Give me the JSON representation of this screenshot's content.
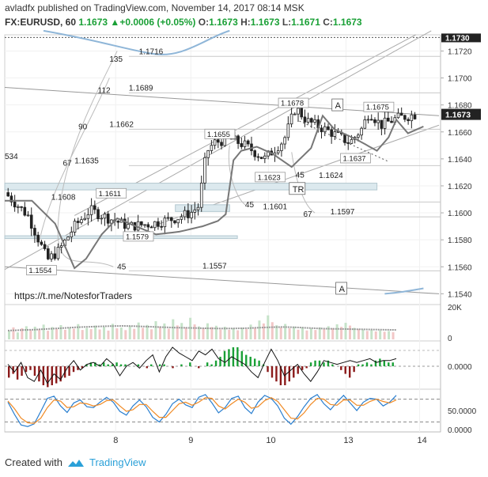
{
  "header": {
    "user": "avladfx",
    "published": "published on TradingView.com, November 14, 2017 08:14 MSK",
    "symbol": "FX:EURUSD, 60",
    "last": "1.1673",
    "change": "+0.0006 (+0.05%)",
    "o_label": "O:",
    "o": "1.1673",
    "h_label": "H:",
    "h": "1.1673",
    "l_label": "L:",
    "l": "1.1671",
    "c_label": "C:",
    "c": "1.1673"
  },
  "footer": {
    "created_with": "Created with",
    "brand": "TradingView"
  },
  "colors": {
    "bull": "#1aa036",
    "bear": "#8b1a1a",
    "price_label": "#222222",
    "stoch_k": "#2a7fd0",
    "stoch_d": "#f08a24",
    "ma_line": "#777777",
    "blue_band": "#8fb6d8"
  },
  "chart_data": [
    {
      "type": "line",
      "subtype": "candlestick",
      "yaxis_ticks": [
        "1.1720",
        "1.1700",
        "1.1680",
        "1.1660",
        "1.1640",
        "1.1620",
        "1.1600",
        "1.1580",
        "1.1560",
        "1.1540"
      ],
      "ylim": [
        1.1532,
        1.1732
      ],
      "xaxis_ticks": [
        "8",
        "9",
        "10",
        "13",
        "14"
      ],
      "price_labels": [
        "1.1730",
        "1.1673"
      ],
      "current_price": 1.1673,
      "top_line": 1.173,
      "price_points": [
        {
          "x": 0.0,
          "y": 1.1615
        },
        {
          "x": 0.3,
          "y": 1.1598
        },
        {
          "x": 0.55,
          "y": 1.1565
        },
        {
          "x": 0.7,
          "y": 1.1572
        },
        {
          "x": 0.9,
          "y": 1.159
        },
        {
          "x": 1.1,
          "y": 1.1602
        },
        {
          "x": 1.3,
          "y": 1.1597
        },
        {
          "x": 1.6,
          "y": 1.159
        },
        {
          "x": 1.9,
          "y": 1.1592
        },
        {
          "x": 2.2,
          "y": 1.1596
        },
        {
          "x": 2.4,
          "y": 1.16
        },
        {
          "x": 2.5,
          "y": 1.1605
        },
        {
          "x": 2.6,
          "y": 1.1645
        },
        {
          "x": 2.7,
          "y": 1.1652
        },
        {
          "x": 2.9,
          "y": 1.1655
        },
        {
          "x": 3.1,
          "y": 1.165
        },
        {
          "x": 3.35,
          "y": 1.164
        },
        {
          "x": 3.6,
          "y": 1.1654
        },
        {
          "x": 3.75,
          "y": 1.1678
        },
        {
          "x": 3.9,
          "y": 1.1668
        },
        {
          "x": 4.2,
          "y": 1.166
        },
        {
          "x": 4.45,
          "y": 1.1652
        },
        {
          "x": 4.6,
          "y": 1.1662
        },
        {
          "x": 4.7,
          "y": 1.1675
        },
        {
          "x": 4.85,
          "y": 1.1665
        },
        {
          "x": 5.05,
          "y": 1.167
        },
        {
          "x": 5.3,
          "y": 1.1673
        }
      ],
      "level_labels": [
        {
          "text": "1.1716",
          "price": 1.1716,
          "x": 1.73
        },
        {
          "text": "1.1689",
          "price": 1.1689,
          "x": 1.6
        },
        {
          "text": "1.1662",
          "price": 1.1662,
          "x": 1.35
        },
        {
          "text": "1.1635",
          "price": 1.1635,
          "x": 0.9
        },
        {
          "text": "1.1608",
          "price": 1.1608,
          "x": 0.6
        },
        {
          "text": "1.1557",
          "price": 1.1557,
          "x": 2.55
        },
        {
          "text": "1.1601",
          "price": 1.1601,
          "x": 3.33
        },
        {
          "text": "1.1597",
          "price": 1.1597,
          "x": 4.2
        },
        {
          "text": "1.1624",
          "price": 1.1624,
          "x": 4.05
        }
      ],
      "boxed_labels": [
        {
          "text": "1.1678",
          "price": 1.1678,
          "x": 3.55
        },
        {
          "text": "1.1675",
          "price": 1.1675,
          "x": 4.65
        },
        {
          "text": "1.1655",
          "price": 1.1655,
          "x": 2.6
        },
        {
          "text": "1.1611",
          "price": 1.1611,
          "x": 1.2
        },
        {
          "text": "1.1623",
          "price": 1.1623,
          "x": 3.25
        },
        {
          "text": "1.1579",
          "price": 1.1579,
          "x": 1.55
        },
        {
          "text": "1.1554",
          "price": 1.1554,
          "x": 0.3
        },
        {
          "text": "1.1637",
          "price": 1.1637,
          "x": 4.35
        }
      ],
      "fib_labels": [
        {
          "text": "135",
          "price": 1.1712,
          "x": 1.35
        },
        {
          "text": "112",
          "price": 1.1689,
          "x": 1.2
        },
        {
          "text": "90",
          "price": 1.1662,
          "x": 0.95
        },
        {
          "text": "67",
          "price": 1.1635,
          "x": 0.75
        },
        {
          "text": "534",
          "price": 1.164,
          "x": 0.0
        },
        {
          "text": "45",
          "price": 1.1558,
          "x": 1.45
        },
        {
          "text": "45",
          "price": 1.1626,
          "x": 3.75
        },
        {
          "text": "45",
          "price": 1.1604,
          "x": 3.1
        },
        {
          "text": "67",
          "price": 1.1597,
          "x": 3.85
        }
      ],
      "markers": [
        {
          "text": "A",
          "price": 1.1678,
          "x": 4.25
        },
        {
          "text": "TR",
          "price": 1.1616,
          "x": 3.7
        },
        {
          "text": "A",
          "price": 1.1542,
          "x": 4.3
        }
      ],
      "annotation": "https://t.me/NotesforTraders"
    },
    {
      "type": "bar",
      "name": "volume",
      "yaxis_ticks": [
        "20K",
        "0"
      ],
      "ylim": [
        0,
        20000
      ],
      "values": [
        5200,
        7400,
        4300,
        6900,
        8100,
        5600,
        7800,
        6200,
        9100,
        5300,
        7600,
        6400,
        8800,
        5900,
        7200,
        6600,
        9400,
        5800,
        7000,
        6300,
        8500,
        6100,
        7700,
        5400,
        9600,
        6800,
        7300,
        5700,
        8200,
        6500,
        10400,
        7100,
        8900,
        6200,
        11200,
        7900,
        9800,
        6600,
        12400,
        8600,
        10100,
        7400,
        13300,
        9200,
        8000,
        6900,
        9900,
        7600,
        8400,
        6100,
        7800,
        5900,
        6900,
        5600,
        7200,
        6300,
        9100,
        7000,
        11600,
        9800,
        14800,
        10600,
        8700,
        7300,
        9500,
        6800,
        7900,
        6000,
        7500,
        5500,
        6700,
        5800,
        7400,
        6200,
        8100,
        6900,
        9300,
        7700,
        10200,
        8500,
        7100,
        6400,
        6000,
        5200,
        5800,
        4900,
        5500,
        4700,
        5100,
        4400
      ],
      "ma_values": [
        5400,
        5600,
        5800,
        6000,
        6300,
        6600,
        6900,
        7200,
        7500,
        7700,
        7900,
        8100,
        8200,
        8300,
        8200,
        8000,
        7800,
        7600,
        7400,
        7200,
        7100,
        7000,
        6900,
        6800,
        6700,
        6700,
        6800,
        6900,
        7100,
        7300,
        7500,
        7600,
        7500,
        7300,
        7000,
        6800,
        6600,
        6500,
        6400,
        6300,
        6200,
        6100,
        6000,
        5900,
        5800
      ]
    },
    {
      "type": "bar",
      "name": "histogram oscillator",
      "yaxis_ticks": [
        "0.0000"
      ],
      "values": [
        -0.6,
        -0.4,
        -0.7,
        -0.5,
        -0.3,
        -0.2,
        -0.5,
        -0.8,
        -1.0,
        -1.1,
        -1.0,
        -0.9,
        -0.8,
        -0.6,
        -0.5,
        -0.3,
        -0.2,
        -0.1,
        0.1,
        0.2,
        0.2,
        0.1,
        0.2,
        0.1,
        0.1,
        0.2,
        0.1,
        0.1,
        0.0,
        0.0,
        0.1,
        0.0,
        -0.1,
        0.1,
        0.0,
        0.1,
        0.1,
        0.0,
        -0.1,
        0.0,
        0.1,
        0.0,
        0.2,
        0.0,
        -0.1,
        0.0,
        0.2,
        0.1,
        0.3,
        0.5,
        0.8,
        0.9,
        1.0,
        1.0,
        0.8,
        0.6,
        0.5,
        0.4,
        0.3,
        0.1,
        -0.3,
        -0.6,
        -0.8,
        -1.0,
        -1.0,
        -0.8,
        -0.6,
        -0.4,
        -0.2,
        -0.1,
        0.2,
        0.3,
        0.3,
        0.2,
        0.3,
        0.1,
        0.0,
        -0.2,
        -0.4,
        -0.6,
        -0.3,
        0.1,
        0.1,
        0.2,
        0.1,
        0.3,
        0.4,
        0.3,
        0.2,
        0.2
      ],
      "line_values": [
        0.1,
        -0.3,
        0.2,
        -0.6,
        -0.8,
        -0.2,
        -0.9,
        -0.4,
        -0.7,
        -0.1,
        0.3,
        -0.2,
        0.1,
        0.2,
        0.0,
        0.4,
        0.1,
        -0.5,
        0.0,
        0.2,
        -0.1,
        0.3,
        0.6,
        -0.3,
        0.5,
        1.0,
        0.7,
        0.5,
        0.3,
        0.8,
        0.6,
        0.9,
        0.4,
        0.2,
        0.5,
        0.3,
        0.1,
        -0.3,
        -0.6,
        0.2,
        0.9,
        0.3,
        -0.5,
        -0.2,
        0.1,
        -0.4,
        -0.8,
        -0.3,
        0.3,
        0.2,
        0.1,
        0.2,
        0.3,
        0.2,
        0.3,
        0.4,
        0.2,
        0.3,
        0.3,
        0.4
      ]
    },
    {
      "type": "line",
      "name": "stochastic",
      "yaxis_ticks": [
        "50.0000",
        "0.0000"
      ],
      "ylim": [
        0,
        100
      ],
      "levels": [
        80,
        20
      ],
      "series": [
        {
          "values": [
            72,
            40,
            12,
            8,
            15,
            48,
            82,
            88,
            62,
            45,
            70,
            78,
            60,
            58,
            72,
            85,
            72,
            48,
            38,
            62,
            78,
            60,
            32,
            20,
            40,
            68,
            80,
            65,
            58,
            85,
            92,
            70,
            44,
            58,
            82,
            88,
            58,
            42,
            72,
            90,
            82,
            62,
            30,
            14,
            34,
            60,
            82,
            92,
            68,
            52,
            72,
            90,
            70,
            50,
            72,
            82,
            80,
            62,
            72,
            90
          ]
        },
        {
          "values": [
            75,
            55,
            30,
            18,
            16,
            30,
            58,
            78,
            75,
            58,
            60,
            70,
            68,
            62,
            66,
            76,
            78,
            62,
            48,
            52,
            66,
            66,
            48,
            32,
            32,
            50,
            68,
            72,
            64,
            72,
            84,
            82,
            62,
            54,
            68,
            80,
            72,
            56,
            60,
            76,
            84,
            74,
            52,
            30,
            28,
            44,
            66,
            82,
            80,
            66,
            64,
            78,
            78,
            64,
            64,
            74,
            80,
            74,
            70,
            78
          ]
        }
      ]
    }
  ]
}
